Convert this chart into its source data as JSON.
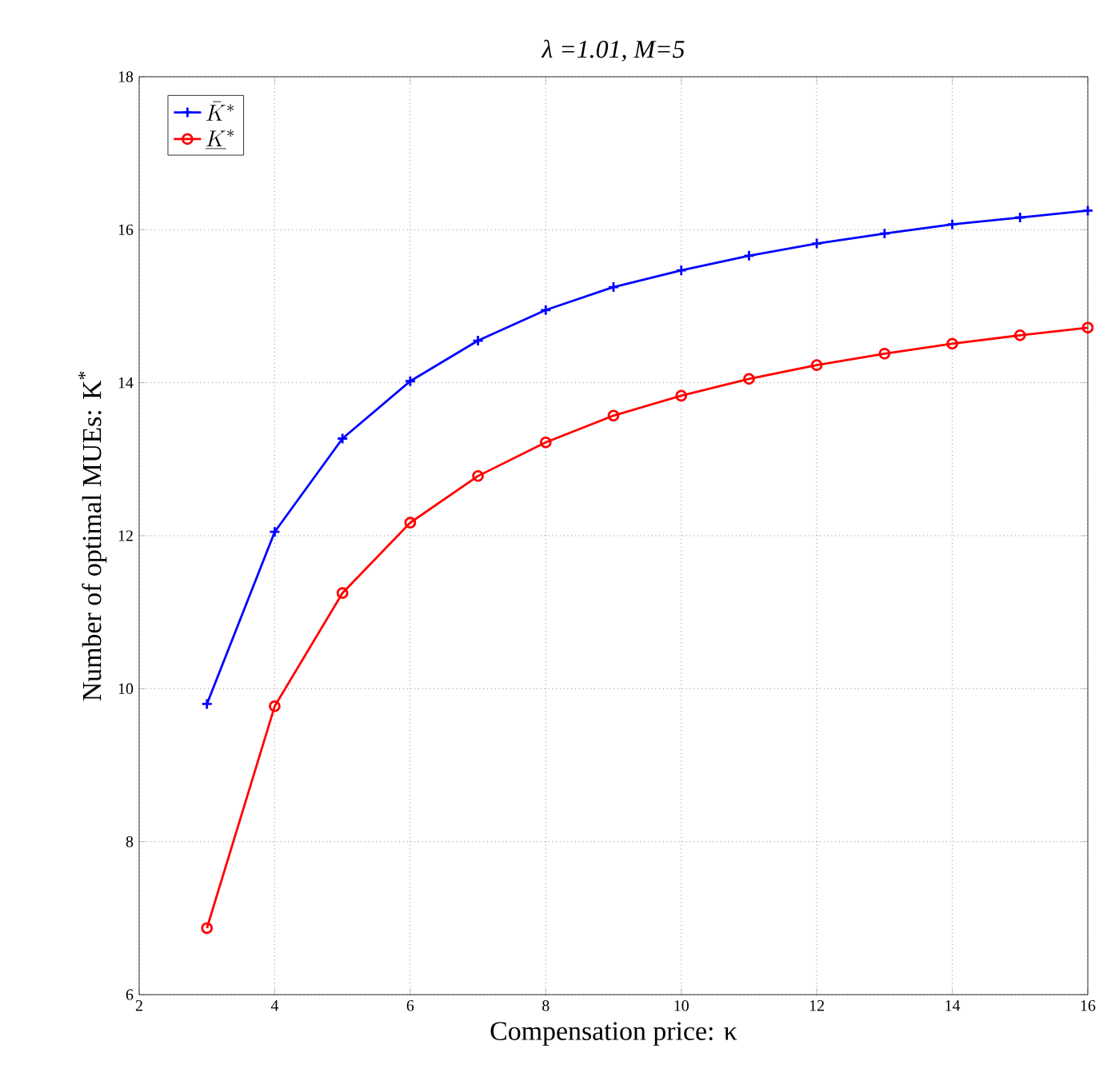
{
  "chart_data": {
    "type": "line",
    "title": "λ =1.01, M=5",
    "xlabel": "Compensation price: κ",
    "ylabel": "Number of optimal MUEs: K$^{*}$",
    "x": [
      3,
      4,
      5,
      6,
      7,
      8,
      9,
      10,
      11,
      12,
      13,
      14,
      15,
      16
    ],
    "series": [
      {
        "name": "\\bar{K}^*",
        "color": "#0000ff",
        "marker": "cross",
        "values": [
          9.8,
          12.05,
          13.27,
          14.02,
          14.55,
          14.95,
          15.25,
          15.47,
          15.66,
          15.82,
          15.95,
          16.07,
          16.16,
          16.25
        ]
      },
      {
        "name": "\\underline{K}^*",
        "color": "#ff0000",
        "marker": "circle",
        "values": [
          6.87,
          9.77,
          11.25,
          12.17,
          12.78,
          13.22,
          13.57,
          13.83,
          14.05,
          14.23,
          14.38,
          14.51,
          14.62,
          14.72
        ]
      }
    ],
    "xlim": [
      2,
      16
    ],
    "ylim": [
      6,
      18
    ],
    "xticks": [
      2,
      4,
      6,
      8,
      10,
      12,
      14,
      16
    ],
    "yticks": [
      6,
      8,
      10,
      12,
      14,
      16,
      18
    ],
    "grid": true,
    "legend": "top left",
    "line_style": "solid"
  }
}
